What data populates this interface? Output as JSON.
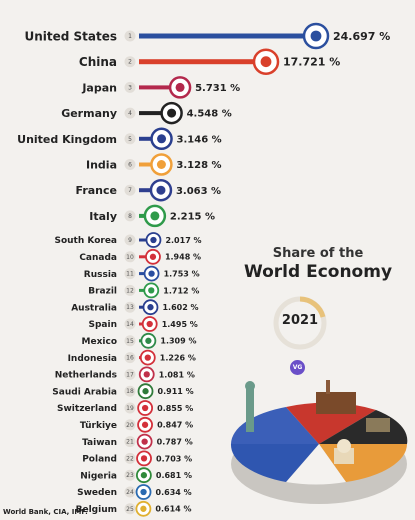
{
  "panel": {
    "title_line1": "Share of the",
    "title_line2": "World Economy",
    "year": "2021",
    "brand": "VG"
  },
  "source": "World Bank, CIA, IMF.",
  "chart_data": {
    "type": "bar",
    "orientation": "horizontal",
    "categories": [
      "United States",
      "China",
      "Japan",
      "Germany",
      "United Kingdom",
      "India",
      "France",
      "Italy",
      "South Korea",
      "Canada",
      "Russia",
      "Brazil",
      "Australia",
      "Spain",
      "Mexico",
      "Indonesia",
      "Netherlands",
      "Saudi Arabia",
      "Switzerland",
      "Türkiye",
      "Taiwan",
      "Poland",
      "Nigeria",
      "Sweden",
      "Belgium"
    ],
    "ranks": [
      "1",
      "2",
      "3",
      "4",
      "5",
      "6",
      "7",
      "8",
      "9",
      "10",
      "11",
      "12",
      "13",
      "14",
      "15",
      "16",
      "17",
      "18",
      "19",
      "20",
      "21",
      "22",
      "23",
      "24",
      "25"
    ],
    "values": [
      24.697,
      17.721,
      5.731,
      4.548,
      3.146,
      3.128,
      3.063,
      2.215,
      2.017,
      1.948,
      1.753,
      1.712,
      1.602,
      1.495,
      1.309,
      1.226,
      1.081,
      0.911,
      0.855,
      0.847,
      0.787,
      0.703,
      0.681,
      0.634,
      0.614
    ],
    "value_labels": [
      "24.697 %",
      "17.721 %",
      "5.731 %",
      "4.548 %",
      "3.146 %",
      "3.128 %",
      "3.063 %",
      "2.215 %",
      "2.017 %",
      "1.948 %",
      "1.753 %",
      "1.712 %",
      "1.602 %",
      "1.495 %",
      "1.309 %",
      "1.226 %",
      "1.081 %",
      "0.911 %",
      "0.855 %",
      "0.847 %",
      "0.787 %",
      "0.703 %",
      "0.681 %",
      "0.634 %",
      "0.614 %"
    ],
    "colors": [
      "#2b4f9e",
      "#d9402b",
      "#b3284c",
      "#222222",
      "#2a3f8f",
      "#f0a03a",
      "#2f3f8f",
      "#2f9a4a",
      "#2a3f8f",
      "#d3303a",
      "#2a4ea0",
      "#2f9a4a",
      "#2a3f8f",
      "#d3303a",
      "#2f8a4a",
      "#d3303a",
      "#c0304a",
      "#2f7a3a",
      "#d3303a",
      "#d3303a",
      "#c0304a",
      "#d3303a",
      "#2f8a3a",
      "#2a6ab0",
      "#e0b030"
    ],
    "flags": [
      "us-flag-icon",
      "china-flag-icon",
      "japan-flag-icon",
      "germany-flag-icon",
      "uk-flag-icon",
      "india-flag-icon",
      "france-flag-icon",
      "italy-flag-icon",
      "south-korea-flag-icon",
      "canada-flag-icon",
      "russia-flag-icon",
      "brazil-flag-icon",
      "australia-flag-icon",
      "spain-flag-icon",
      "mexico-flag-icon",
      "indonesia-flag-icon",
      "netherlands-flag-icon",
      "saudi-arabia-flag-icon",
      "switzerland-flag-icon",
      "turkiye-flag-icon",
      "taiwan-flag-icon",
      "poland-flag-icon",
      "nigeria-flag-icon",
      "sweden-flag-icon",
      "belgium-flag-icon"
    ],
    "xlim": [
      0,
      24.697
    ]
  }
}
